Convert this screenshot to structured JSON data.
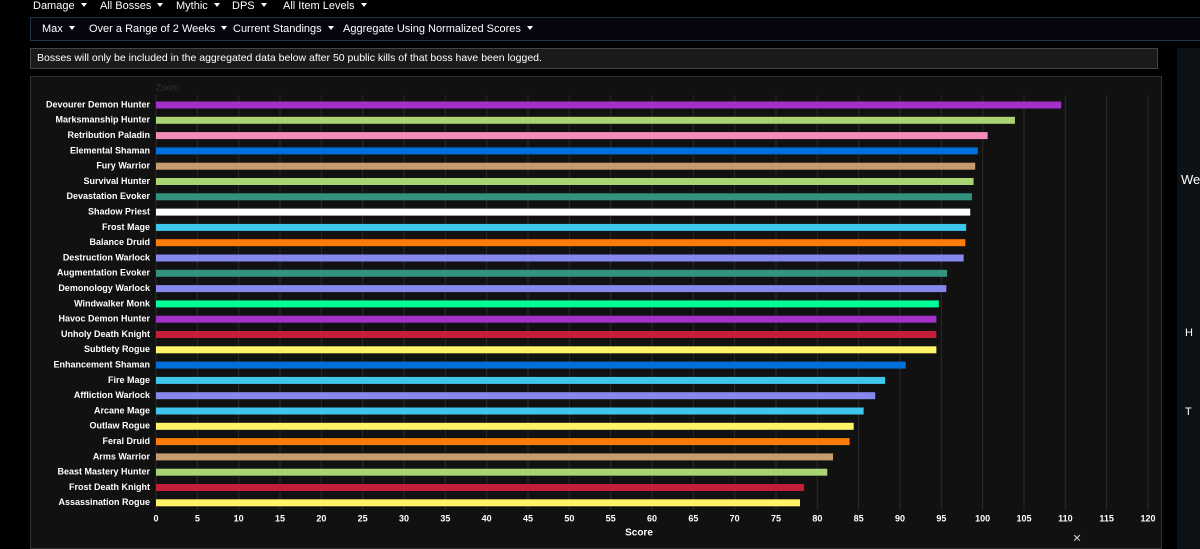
{
  "nav": {
    "row1": [
      "Damage",
      "All Bosses",
      "Mythic",
      "DPS",
      "All Item Levels"
    ],
    "row2": [
      "Max",
      "Over a Range of 2 Weeks",
      "Current Standings",
      "Aggregate Using Normalized Scores"
    ]
  },
  "notice": "Bosses will only be included in the aggregated data below after 50 public kills of that boss have been logged.",
  "zoom": "Zoom",
  "close": "×",
  "side": [
    "We",
    "H",
    "T"
  ],
  "chart_data": {
    "type": "hbar",
    "xlabel": "Score",
    "categories": [
      "Devourer Demon Hunter",
      "Marksmanship Hunter",
      "Retribution Paladin",
      "Elemental Shaman",
      "Fury Warrior",
      "Survival Hunter",
      "Devastation Evoker",
      "Shadow Priest",
      "Frost Mage",
      "Balance Druid",
      "Destruction Warlock",
      "Augmentation Evoker",
      "Demonology Warlock",
      "Windwalker Monk",
      "Havoc Demon Hunter",
      "Unholy Death Knight",
      "Subtlety Rogue",
      "Enhancement Shaman",
      "Fire Mage",
      "Affliction Warlock",
      "Arcane Mage",
      "Outlaw Rogue",
      "Feral Druid",
      "Arms Warrior",
      "Beast Mastery Hunter",
      "Frost Death Knight",
      "Assassination Rogue"
    ],
    "values": [
      109.5,
      103.9,
      100.6,
      99.4,
      99.1,
      98.9,
      98.7,
      98.5,
      98.0,
      97.9,
      97.7,
      95.7,
      95.6,
      94.7,
      94.4,
      94.4,
      94.4,
      90.7,
      88.2,
      87.0,
      85.6,
      84.4,
      83.9,
      81.9,
      81.2,
      78.4,
      77.9
    ],
    "colors": [
      "#a330c9",
      "#aad372",
      "#f48cba",
      "#0070dd",
      "#c69b6d",
      "#aad372",
      "#33937f",
      "#ffffff",
      "#3fc7eb",
      "#ff7c0a",
      "#8788ee",
      "#33937f",
      "#8788ee",
      "#00ff98",
      "#a330c9",
      "#c41e3a",
      "#fff468",
      "#0070dd",
      "#3fc7eb",
      "#8788ee",
      "#3fc7eb",
      "#fff468",
      "#ff7c0a",
      "#c69b6d",
      "#aad372",
      "#c41e3a",
      "#fff468"
    ],
    "xlim": [
      0,
      120
    ],
    "xticks": [
      0,
      5,
      10,
      15,
      20,
      25,
      30,
      35,
      40,
      45,
      50,
      55,
      60,
      65,
      70,
      75,
      80,
      85,
      90,
      95,
      100,
      105,
      110,
      115,
      120
    ],
    "grid": true
  }
}
